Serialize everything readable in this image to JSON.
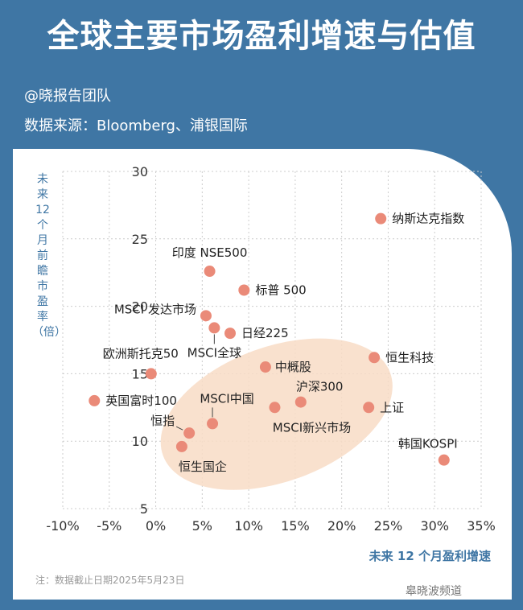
{
  "title": "全球主要市场盈利增速与估值",
  "credit": "@晓报告团队",
  "source": "数据来源：Bloomberg、浦银国际",
  "note": "注：数据截止日期2025年5月23日",
  "watermark": "皋晓波频道",
  "colors": {
    "background": "#3f76a4",
    "point": "#ea8a78",
    "ellipse": "#f8dcc6",
    "axis_label": "#3f76a4",
    "grid": "#cccccc"
  },
  "chart_data": {
    "type": "scatter",
    "xlabel": "未来 12 个月盈利增速",
    "ylabel": "未来 12 个月前瞻市盈率（倍）",
    "xlim": [
      -10,
      35
    ],
    "ylim": [
      5,
      30
    ],
    "xticks": [
      -10,
      -5,
      0,
      5,
      10,
      15,
      20,
      25,
      30,
      35
    ],
    "xtick_labels": [
      "-10%",
      "-5%",
      "0%",
      "5%",
      "10%",
      "15%",
      "20%",
      "25%",
      "30%",
      "35%"
    ],
    "yticks": [
      5,
      10,
      15,
      20,
      25,
      30
    ],
    "ytick_labels": [
      "5",
      "10",
      "15",
      "20",
      "25",
      "30"
    ],
    "grid": true,
    "points": [
      {
        "label": "纳斯达克指数",
        "x": 24.2,
        "y": 26.5
      },
      {
        "label": "印度 NSE500",
        "x": 5.8,
        "y": 22.6
      },
      {
        "label": "标普 500",
        "x": 9.5,
        "y": 21.2
      },
      {
        "label": "MSCI 发达市场",
        "x": 5.4,
        "y": 19.3
      },
      {
        "label": "MSCI全球",
        "x": 6.3,
        "y": 18.4
      },
      {
        "label": "日经225",
        "x": 8.0,
        "y": 18.0
      },
      {
        "label": "欧洲斯托克50",
        "x": -0.5,
        "y": 15.0
      },
      {
        "label": "中概股",
        "x": 11.8,
        "y": 15.5
      },
      {
        "label": "恒生科技",
        "x": 23.5,
        "y": 16.2
      },
      {
        "label": "英国富时100",
        "x": -6.6,
        "y": 13.0
      },
      {
        "label": "MSCI中国",
        "x": 6.1,
        "y": 11.3
      },
      {
        "label": "沪深300",
        "x": 15.6,
        "y": 12.9
      },
      {
        "label": "MSCI新兴市场",
        "x": 12.8,
        "y": 12.5
      },
      {
        "label": "上证",
        "x": 22.9,
        "y": 12.5
      },
      {
        "label": "恒指",
        "x": 3.6,
        "y": 10.6
      },
      {
        "label": "恒生国企",
        "x": 2.8,
        "y": 9.6
      },
      {
        "label": "韩国KOSPI",
        "x": 31.0,
        "y": 8.6
      }
    ],
    "highlight_ellipse": {
      "cx": 13.0,
      "cy": 12.0,
      "rx": 13.0,
      "ry": 5.0,
      "angle": 20
    }
  }
}
